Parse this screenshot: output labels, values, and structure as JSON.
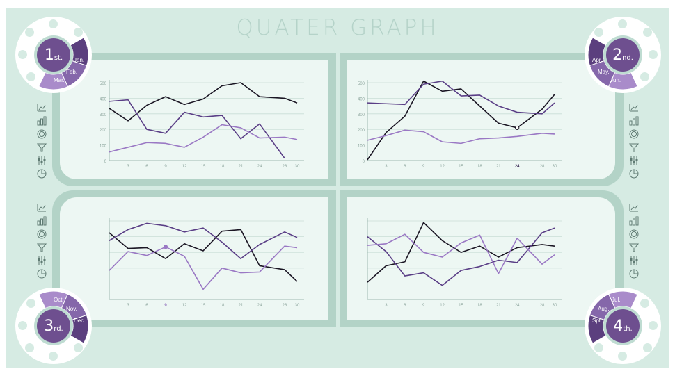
{
  "title": "QUATER GRAPH",
  "colors": {
    "background": "#d6ebe3",
    "frame": "#b3d3c7",
    "panel": "#edf7f3",
    "badge_purple": "#6e4f8f",
    "line_black": "#1b1624",
    "line_dark_purple": "#5a3e86",
    "line_light_purple": "#9a78c4"
  },
  "quarters": [
    {
      "number": "1",
      "suffix": "st.",
      "months": [
        "Jan.",
        "Feb.",
        "Mar."
      ]
    },
    {
      "number": "2",
      "suffix": "nd.",
      "months": [
        "Apr.",
        "May.",
        "Jun."
      ]
    },
    {
      "number": "3",
      "suffix": "rd.",
      "months": [
        "Oct",
        "Nov.",
        "Dec."
      ]
    },
    {
      "number": "4",
      "suffix": "th.",
      "months": [
        "Jul.",
        "Aug.",
        "Spt."
      ]
    }
  ],
  "icons": [
    "line-chart-icon",
    "bar-chart-icon",
    "donut-chart-icon",
    "funnel-icon",
    "slider-chart-icon",
    "pie-chart-icon"
  ],
  "chart_data": [
    {
      "type": "line",
      "x": [
        0,
        3,
        6,
        9,
        12,
        15,
        18,
        21,
        24,
        28,
        30
      ],
      "xticks": [
        "3",
        "6",
        "9",
        "12",
        "15",
        "18",
        "21",
        "24",
        "28",
        "30"
      ],
      "yticks": [
        "0",
        "100",
        "200",
        "300",
        "400",
        "500"
      ],
      "ylim": [
        0,
        500
      ],
      "grid": true,
      "series": [
        {
          "color": "#1b1624",
          "values": [
            335,
            255,
            355,
            410,
            360,
            395,
            480,
            500,
            410,
            400,
            370
          ]
        },
        {
          "color": "#5a3e86",
          "values": [
            380,
            390,
            200,
            175,
            310,
            280,
            290,
            140,
            235,
            15,
            null
          ]
        },
        {
          "color": "#9a78c4",
          "values": [
            55,
            85,
            115,
            110,
            85,
            150,
            230,
            210,
            145,
            150,
            135
          ]
        }
      ]
    },
    {
      "type": "line",
      "x": [
        0,
        3,
        6,
        9,
        12,
        15,
        18,
        21,
        24,
        28,
        30
      ],
      "xticks": [
        "3",
        "6",
        "9",
        "12",
        "15",
        "18",
        "21",
        "24",
        "28",
        "30"
      ],
      "highlight_tick": "24",
      "yticks": [
        "0",
        "100",
        "200",
        "300",
        "400",
        "500"
      ],
      "ylim": [
        0,
        500
      ],
      "grid": true,
      "series": [
        {
          "color": "#1b1624",
          "values": [
            5,
            180,
            285,
            510,
            445,
            460,
            350,
            240,
            210,
            330,
            425
          ]
        },
        {
          "color": "#5a3e86",
          "values": [
            370,
            365,
            360,
            490,
            510,
            415,
            420,
            350,
            310,
            300,
            370
          ]
        },
        {
          "color": "#9a78c4",
          "values": [
            130,
            160,
            195,
            185,
            120,
            110,
            140,
            145,
            155,
            175,
            170
          ]
        }
      ],
      "marker": {
        "x": 24,
        "y": 210
      }
    },
    {
      "type": "line",
      "x": [
        0,
        3,
        6,
        9,
        12,
        15,
        18,
        21,
        24,
        28,
        30
      ],
      "xticks": [
        "3",
        "6",
        "9",
        "12",
        "15",
        "18",
        "21",
        "24",
        "28",
        "30"
      ],
      "highlight_tick": "9",
      "yticks": [],
      "ylim": [
        0,
        500
      ],
      "grid": true,
      "series": [
        {
          "color": "#1b1624",
          "values": [
            425,
            325,
            330,
            260,
            355,
            310,
            435,
            445,
            215,
            190,
            115
          ]
        },
        {
          "color": "#5a3e86",
          "values": [
            375,
            445,
            485,
            470,
            430,
            455,
            365,
            260,
            350,
            430,
            395
          ]
        },
        {
          "color": "#9a78c4",
          "values": [
            185,
            305,
            280,
            335,
            275,
            65,
            200,
            170,
            175,
            340,
            330
          ]
        }
      ],
      "marker": {
        "x": 9,
        "y": 335
      }
    },
    {
      "type": "line",
      "x": [
        0,
        3,
        6,
        9,
        12,
        15,
        18,
        21,
        24,
        28,
        30
      ],
      "xticks": [
        "3",
        "6",
        "9",
        "12",
        "15",
        "18",
        "21",
        "24",
        "28",
        "30"
      ],
      "yticks": [],
      "ylim": [
        0,
        500
      ],
      "grid": true,
      "series": [
        {
          "color": "#1b1624",
          "values": [
            110,
            215,
            240,
            490,
            375,
            300,
            340,
            270,
            330,
            350,
            340
          ]
        },
        {
          "color": "#5a3e86",
          "values": [
            400,
            305,
            150,
            170,
            90,
            185,
            210,
            250,
            235,
            425,
            455
          ]
        },
        {
          "color": "#9a78c4",
          "values": [
            345,
            355,
            415,
            300,
            270,
            360,
            410,
            165,
            390,
            225,
            285
          ]
        }
      ]
    }
  ]
}
